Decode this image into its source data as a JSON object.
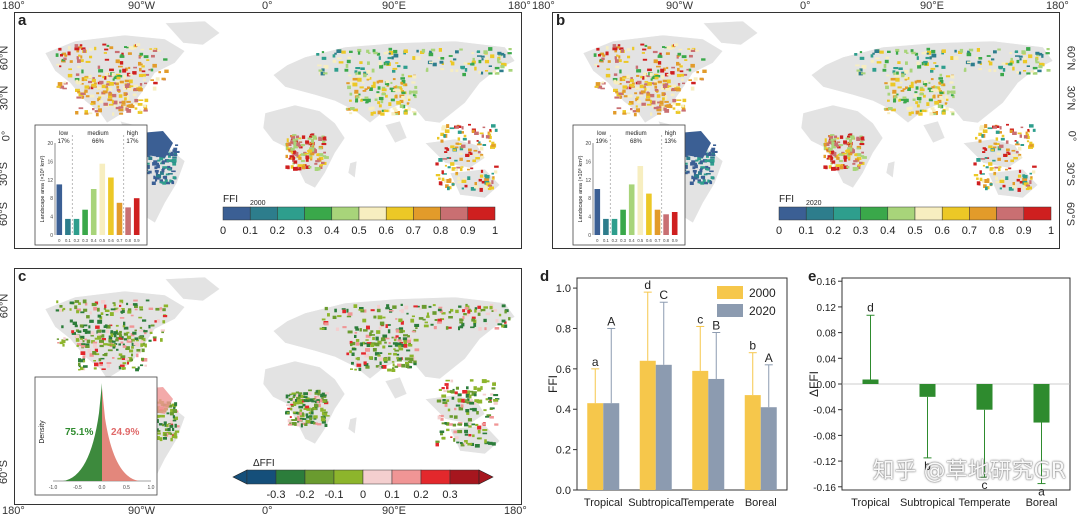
{
  "panel_labels": {
    "a": "a",
    "b": "b",
    "c": "c",
    "d": "d",
    "e": "e"
  },
  "lon_ticks": [
    "180°",
    "90°W",
    "0°",
    "90°E",
    "180°"
  ],
  "lon_ticks_b": [
    "180°",
    "90°W",
    "0°",
    "90°E",
    "180°"
  ],
  "lon_ticks_c": [
    "180°",
    "90°W",
    "0°",
    "90°E",
    "180°"
  ],
  "lat_ticks": [
    "60°N",
    "30°N",
    "0°",
    "30°S",
    "60°S"
  ],
  "colors": {
    "land": "#e3e3e3",
    "ffi_classes": [
      "#3b5f94",
      "#2d7d8c",
      "#2e9e8d",
      "#3aa84a",
      "#a8d47a",
      "#f7eec0",
      "#ecc826",
      "#e29b2a",
      "#c96f72",
      "#cf1f1f"
    ],
    "dffi_classes": [
      "#154f7a",
      "#2c7d3b",
      "#6a9b2f",
      "#8db52c",
      "#f4cfcf",
      "#f09595",
      "#e3282c",
      "#a6161e"
    ],
    "bar2000": "#f6c74b",
    "bar2020": "#8c9bb0",
    "dffi_bar": "#2e8b2e"
  },
  "chart_data": [
    {
      "id": "a-inset",
      "type": "bar",
      "ylabel": "Landscape area (×10⁶ km²)",
      "categories": [
        "0",
        "0.1",
        "0.2",
        "0.3",
        "0.4",
        "0.5",
        "0.6",
        "0.7",
        "0.8",
        "0.9"
      ],
      "values": [
        11,
        3.5,
        3.5,
        5.5,
        10,
        15.5,
        12.5,
        7,
        6,
        8
      ],
      "yticks": [
        0,
        2,
        4,
        6,
        8,
        10,
        12,
        14,
        16,
        18,
        20
      ],
      "ylim": [
        0,
        20
      ],
      "groups": [
        {
          "name": "low",
          "pct": "17%"
        },
        {
          "name": "medium",
          "pct": "66%"
        },
        {
          "name": "high",
          "pct": "17%"
        }
      ],
      "legend_title": "FFI",
      "legend_sub": "2000",
      "legend_ticks": [
        "0",
        "0.1",
        "0.2",
        "0.3",
        "0.4",
        "0.5",
        "0.6",
        "0.7",
        "0.8",
        "0.9",
        "1"
      ]
    },
    {
      "id": "b-inset",
      "type": "bar",
      "ylabel": "Landscape area (×10⁶ km²)",
      "categories": [
        "0",
        "0.1",
        "0.2",
        "0.3",
        "0.4",
        "0.5",
        "0.6",
        "0.7",
        "0.8",
        "0.9"
      ],
      "values": [
        10,
        3.5,
        3.5,
        5.5,
        11,
        15,
        9,
        5.5,
        4.5,
        5
      ],
      "yticks": [
        0,
        2,
        4,
        6,
        8,
        10,
        12,
        14,
        16,
        18,
        20
      ],
      "ylim": [
        0,
        20
      ],
      "groups": [
        {
          "name": "low",
          "pct": "19%"
        },
        {
          "name": "medium",
          "pct": "68%"
        },
        {
          "name": "high",
          "pct": "13%"
        }
      ],
      "legend_title": "FFI",
      "legend_sub": "2020",
      "legend_ticks": [
        "0",
        "0.1",
        "0.2",
        "0.3",
        "0.4",
        "0.5",
        "0.6",
        "0.7",
        "0.8",
        "0.9",
        "1"
      ]
    },
    {
      "id": "c-inset",
      "type": "area",
      "ylabel": "Density",
      "xticks": [
        "-1.0",
        "-0.5",
        "0.0",
        "0.5",
        "1.0"
      ],
      "xlim": [
        -1,
        1
      ],
      "neg_pct": "75.1%",
      "pos_pct": "24.9%",
      "legend_title": "ΔFFI",
      "legend_ticks": [
        "-0.3",
        "-0.2",
        "-0.1",
        "0",
        "0.1",
        "0.2",
        "0.3"
      ]
    },
    {
      "id": "d",
      "type": "bar",
      "categories": [
        "Tropical",
        "Subtropical",
        "Temperate",
        "Boreal"
      ],
      "ylabel": "FFI",
      "ylim": [
        0,
        1.05
      ],
      "yticks": [
        "0.0",
        "0.2",
        "0.4",
        "0.6",
        "0.8",
        "1.0"
      ],
      "series": [
        {
          "name": "2000",
          "values": [
            0.43,
            0.64,
            0.59,
            0.47
          ],
          "err": [
            0.17,
            0.34,
            0.22,
            0.21
          ],
          "letters": [
            "a",
            "d",
            "c",
            "b"
          ]
        },
        {
          "name": "2020",
          "values": [
            0.43,
            0.62,
            0.55,
            0.41
          ],
          "err": [
            0.37,
            0.31,
            0.23,
            0.21
          ],
          "letters": [
            "A",
            "C",
            "B",
            "A"
          ]
        }
      ]
    },
    {
      "id": "e",
      "type": "bar",
      "categories": [
        "Tropical",
        "Subtropical",
        "Temperate",
        "Boreal"
      ],
      "ylabel": "ΔFFI",
      "ylim": [
        -0.165,
        0.165
      ],
      "yticks": [
        "0.16",
        "0.12",
        "0.08",
        "0.04",
        "0.00",
        "-0.04",
        "-0.08",
        "-0.12",
        "-0.16"
      ],
      "values": [
        0.007,
        -0.02,
        -0.04,
        -0.06
      ],
      "err": [
        0.1,
        0.095,
        0.105,
        0.095
      ],
      "letters": [
        "d",
        "b",
        "c",
        "a"
      ]
    }
  ],
  "watermark": "知乎 @草地研究GR"
}
